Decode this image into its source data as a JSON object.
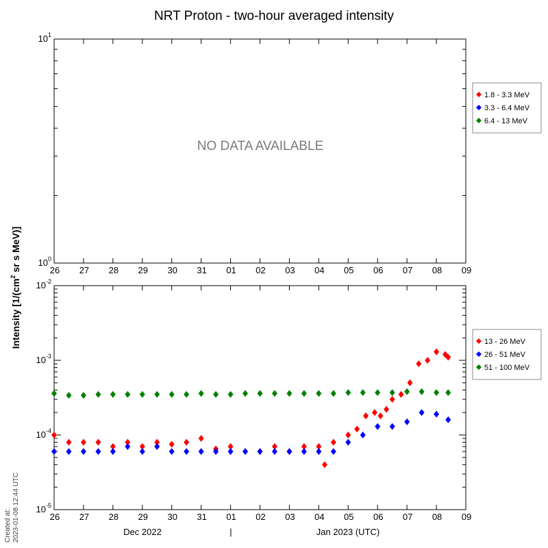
{
  "title": "NRT Proton - two-hour averaged intensity",
  "ylabel": "Intensity [1/(cm² sr s MeV)]",
  "ylabel_parts": {
    "pre": "Intensity [1/(cm",
    "sup": "2",
    "post": " sr s MeV)]"
  },
  "created": {
    "line1": "Created at:",
    "line2": "2023-01-08 12:44 UTC"
  },
  "month_labels": [
    "Dec 2022",
    "|",
    "Jan 2023 (UTC)"
  ],
  "colors": {
    "red": "#ff0000",
    "blue": "#0000ff",
    "green": "#008000"
  },
  "chart_data": [
    {
      "type": "scatter",
      "title": "NRT Proton - two-hour averaged intensity",
      "xlabel": "",
      "ylabel": "Intensity [1/(cm² sr s MeV)]",
      "yscale": "log",
      "xlim": [
        0,
        14
      ],
      "ylim": [
        1,
        10
      ],
      "x_tick_labels": [
        "26",
        "27",
        "28",
        "29",
        "30",
        "31",
        "01",
        "02",
        "03",
        "04",
        "05",
        "06",
        "07",
        "08",
        "09"
      ],
      "y_tick_labels": [
        {
          "base": "10",
          "exp": "1",
          "value": 10
        },
        {
          "base": "10",
          "exp": "0",
          "value": 1
        }
      ],
      "annotation": "NO DATA AVAILABLE",
      "legend": {
        "position": "right",
        "entries": [
          {
            "name": "1.8 - 3.3 MeV",
            "color": "red"
          },
          {
            "name": "3.3 - 6.4 MeV",
            "color": "blue"
          },
          {
            "name": "6.4 - 13 MeV",
            "color": "green"
          }
        ]
      },
      "series": []
    },
    {
      "type": "scatter",
      "xlabel": "",
      "ylabel": "Intensity [1/(cm² sr s MeV)]",
      "yscale": "log",
      "xlim": [
        0,
        14
      ],
      "ylim": [
        1e-05,
        0.01
      ],
      "x_tick_labels": [
        "26",
        "27",
        "28",
        "29",
        "30",
        "31",
        "01",
        "02",
        "03",
        "04",
        "05",
        "06",
        "07",
        "08",
        "09"
      ],
      "y_tick_labels": [
        {
          "base": "10",
          "exp": "-2",
          "value": 0.01
        },
        {
          "base": "10",
          "exp": "-3",
          "value": 0.001
        },
        {
          "base": "10",
          "exp": "-4",
          "value": 0.0001
        },
        {
          "base": "10",
          "exp": "-5",
          "value": 1e-05
        }
      ],
      "legend": {
        "position": "right",
        "entries": [
          {
            "name": "13 - 26 MeV",
            "color": "red"
          },
          {
            "name": "26 - 51 MeV",
            "color": "blue"
          },
          {
            "name": "51 - 100 MeV",
            "color": "green"
          }
        ]
      },
      "series": [
        {
          "name": "13 - 26 MeV",
          "color": "red",
          "x": [
            0,
            0.5,
            1,
            1.5,
            2,
            2.5,
            3,
            3.5,
            4,
            4.5,
            5,
            5.5,
            6,
            6.5,
            7,
            7.5,
            8,
            8.5,
            9,
            9.2,
            9.5,
            10,
            10.3,
            10.6,
            10.9,
            11.1,
            11.3,
            11.5,
            11.8,
            12.1,
            12.4,
            12.7,
            13,
            13.3,
            13.4
          ],
          "y": [
            0.0001,
            8e-05,
            8e-05,
            8e-05,
            7e-05,
            8e-05,
            7e-05,
            8e-05,
            7.5e-05,
            8e-05,
            9e-05,
            6.5e-05,
            7e-05,
            6e-05,
            6e-05,
            7e-05,
            6e-05,
            7e-05,
            7e-05,
            4e-05,
            8e-05,
            0.0001,
            0.00012,
            0.00018,
            0.0002,
            0.00018,
            0.00022,
            0.0003,
            0.00035,
            0.0005,
            0.0009,
            0.001,
            0.0013,
            0.0012,
            0.0011
          ]
        },
        {
          "name": "26 - 51 MeV",
          "color": "blue",
          "x": [
            0,
            0.5,
            1,
            1.5,
            2,
            2.5,
            3,
            3.5,
            4,
            4.5,
            5,
            5.5,
            6,
            6.5,
            7,
            7.5,
            8,
            8.5,
            9,
            9.5,
            10,
            10.5,
            11,
            11.5,
            12,
            12.5,
            13,
            13.4
          ],
          "y": [
            6e-05,
            6e-05,
            6e-05,
            6e-05,
            6e-05,
            7e-05,
            6e-05,
            7e-05,
            6e-05,
            6e-05,
            6e-05,
            6e-05,
            6e-05,
            6e-05,
            6e-05,
            6e-05,
            6e-05,
            6e-05,
            6e-05,
            6e-05,
            8e-05,
            0.0001,
            0.00013,
            0.00013,
            0.00015,
            0.0002,
            0.00019,
            0.00016
          ]
        },
        {
          "name": "51 - 100 MeV",
          "color": "green",
          "x": [
            0,
            0.5,
            1,
            1.5,
            2,
            2.5,
            3,
            3.5,
            4,
            4.5,
            5,
            5.5,
            6,
            6.5,
            7,
            7.5,
            8,
            8.5,
            9,
            9.5,
            10,
            10.5,
            11,
            11.5,
            12,
            12.5,
            13,
            13.4
          ],
          "y": [
            0.00036,
            0.00034,
            0.00034,
            0.00035,
            0.00035,
            0.00035,
            0.00035,
            0.00035,
            0.00035,
            0.00035,
            0.00036,
            0.00035,
            0.00035,
            0.00036,
            0.00036,
            0.00036,
            0.00036,
            0.00036,
            0.00036,
            0.00036,
            0.00037,
            0.00037,
            0.00037,
            0.00037,
            0.00038,
            0.00038,
            0.00037,
            0.00037
          ]
        }
      ]
    }
  ]
}
